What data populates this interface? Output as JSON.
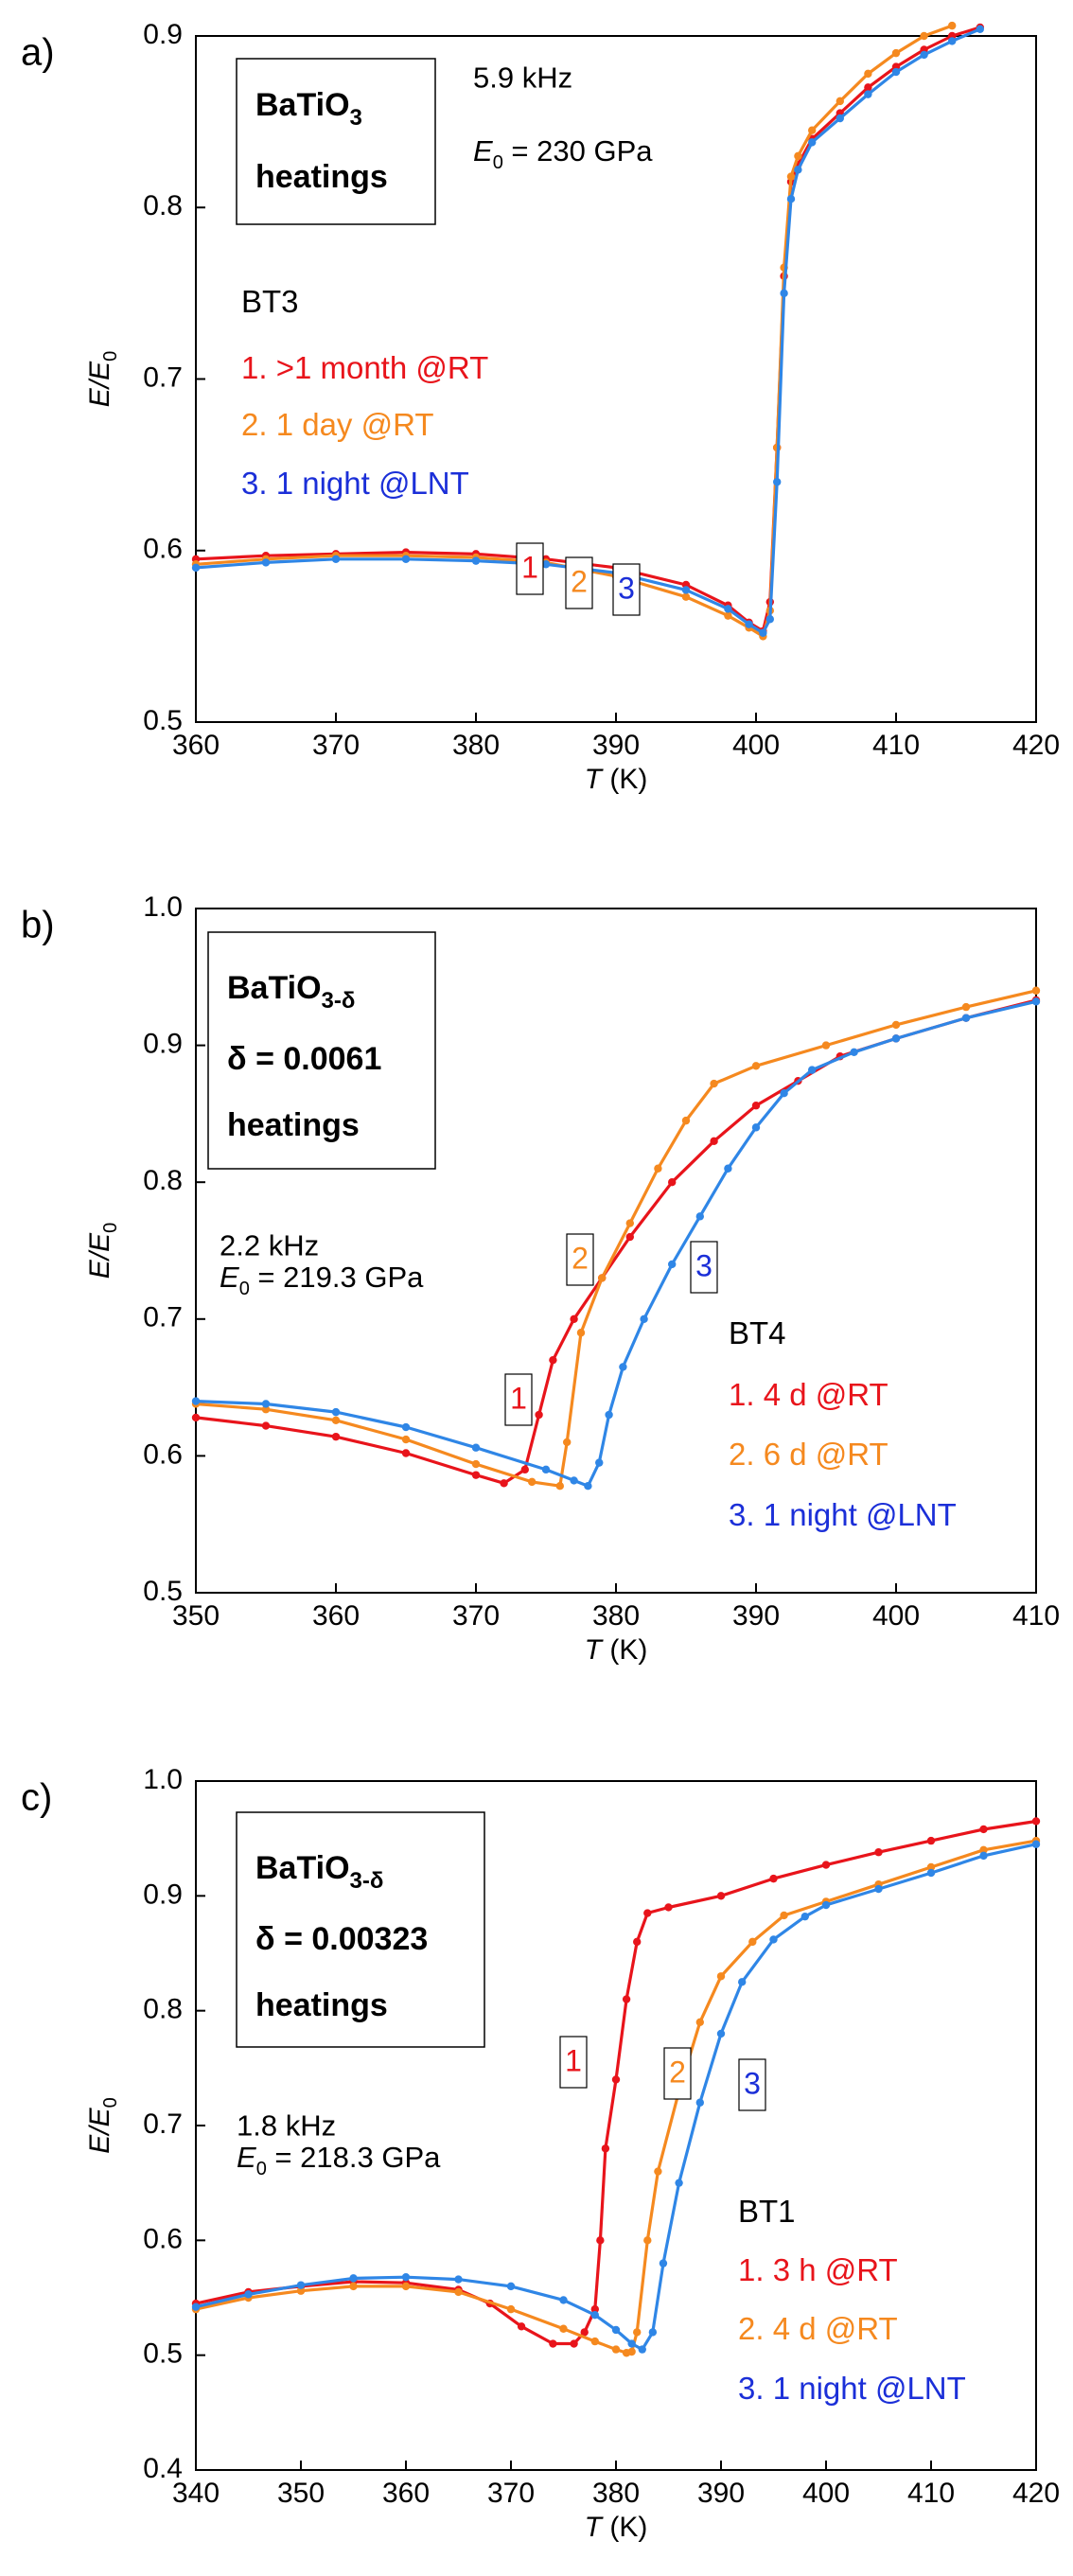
{
  "colors": {
    "series1": "#e8141b",
    "series2": "#f5891f",
    "series3": "#2f86e6",
    "label3": "#1b2fd8",
    "axis": "#000000"
  },
  "chart_data": [
    {
      "panel_label": "a)",
      "type": "line",
      "xlabel": "T (K)",
      "ylabel": "E/E0",
      "xlim": [
        360,
        420
      ],
      "ylim": [
        0.5,
        0.9
      ],
      "xticks": [
        "360",
        "370",
        "380",
        "390",
        "400",
        "410",
        "420"
      ],
      "yticks": [
        "0.5",
        "0.6",
        "0.7",
        "0.8",
        "0.9"
      ],
      "box": {
        "line1": "BaTiO",
        "sub": "3",
        "line2": "heatings"
      },
      "meta": [
        "5.9 kHz",
        "E0 = 230 GPa"
      ],
      "sample": "BT3",
      "legend": [
        "1. >1 month @RT",
        "2. 1 day @RT",
        "3. 1 night @LNT"
      ],
      "curve_labels": [
        "1",
        "2",
        "3"
      ],
      "series": [
        {
          "name": "1. >1 month @RT",
          "x": [
            360,
            365,
            370,
            375,
            380,
            385,
            390,
            395,
            398,
            399.5,
            400.5,
            401,
            401.5,
            402,
            402.5,
            403,
            404,
            406,
            408,
            410,
            412,
            414,
            416
          ],
          "y": [
            0.595,
            0.597,
            0.598,
            0.599,
            0.598,
            0.595,
            0.59,
            0.58,
            0.568,
            0.558,
            0.553,
            0.57,
            0.66,
            0.76,
            0.815,
            0.825,
            0.84,
            0.855,
            0.87,
            0.882,
            0.892,
            0.9,
            0.905
          ]
        },
        {
          "name": "2. 1 day @RT",
          "x": [
            360,
            365,
            370,
            375,
            380,
            385,
            390,
            395,
            398,
            399.5,
            400.5,
            401,
            401.5,
            402,
            402.5,
            403,
            404,
            406,
            408,
            410,
            412,
            414
          ],
          "y": [
            0.592,
            0.595,
            0.597,
            0.597,
            0.596,
            0.593,
            0.585,
            0.573,
            0.562,
            0.555,
            0.55,
            0.565,
            0.66,
            0.765,
            0.818,
            0.83,
            0.845,
            0.862,
            0.878,
            0.89,
            0.9,
            0.906
          ]
        },
        {
          "name": "3. 1 night @LNT",
          "x": [
            360,
            365,
            370,
            375,
            380,
            385,
            390,
            395,
            398,
            399.5,
            400.5,
            401,
            401.5,
            402,
            402.5,
            403,
            404,
            406,
            408,
            410,
            412,
            414,
            416
          ],
          "y": [
            0.59,
            0.593,
            0.595,
            0.595,
            0.594,
            0.592,
            0.587,
            0.577,
            0.566,
            0.557,
            0.552,
            0.56,
            0.64,
            0.75,
            0.805,
            0.822,
            0.838,
            0.852,
            0.866,
            0.879,
            0.889,
            0.897,
            0.904
          ]
        }
      ]
    },
    {
      "panel_label": "b)",
      "type": "line",
      "xlabel": "T (K)",
      "ylabel": "E/E0",
      "xlim": [
        350,
        410
      ],
      "ylim": [
        0.5,
        1.0
      ],
      "xticks": [
        "350",
        "360",
        "370",
        "380",
        "390",
        "400",
        "410"
      ],
      "yticks": [
        "0.5",
        "0.6",
        "0.7",
        "0.8",
        "0.9",
        "1.0"
      ],
      "box": {
        "line1": "BaTiO",
        "sub": "3-δ",
        "line2": "δ  = 0.0061",
        "line3": "heatings"
      },
      "meta": [
        "2.2 kHz",
        "E0 = 219.3 GPa"
      ],
      "sample": "BT4",
      "legend": [
        "1. 4 d @RT",
        "2. 6 d @RT",
        "3. 1 night @LNT"
      ],
      "curve_labels": [
        "1",
        "2",
        "3"
      ],
      "series": [
        {
          "name": "1. 4 d @RT",
          "x": [
            350,
            355,
            360,
            365,
            370,
            372,
            373.5,
            374.5,
            375.5,
            377,
            379,
            381,
            384,
            387,
            390,
            393,
            396,
            400,
            405,
            410
          ],
          "y": [
            0.628,
            0.622,
            0.614,
            0.602,
            0.586,
            0.58,
            0.59,
            0.63,
            0.67,
            0.7,
            0.73,
            0.76,
            0.8,
            0.83,
            0.856,
            0.874,
            0.892,
            0.905,
            0.92,
            0.933
          ]
        },
        {
          "name": "2. 6 d @RT",
          "x": [
            350,
            355,
            360,
            365,
            370,
            374,
            376,
            376.5,
            377.5,
            379,
            381,
            383,
            385,
            387,
            390,
            395,
            400,
            405,
            410
          ],
          "y": [
            0.638,
            0.634,
            0.626,
            0.612,
            0.594,
            0.581,
            0.578,
            0.61,
            0.69,
            0.73,
            0.77,
            0.81,
            0.845,
            0.872,
            0.885,
            0.9,
            0.915,
            0.928,
            0.94
          ]
        },
        {
          "name": "3. 1 night @LNT",
          "x": [
            350,
            355,
            360,
            365,
            370,
            375,
            377,
            378,
            378.8,
            379.5,
            380.5,
            382,
            384,
            386,
            388,
            390,
            392,
            394,
            397,
            400,
            405,
            410
          ],
          "y": [
            0.64,
            0.638,
            0.632,
            0.621,
            0.606,
            0.59,
            0.582,
            0.578,
            0.595,
            0.63,
            0.665,
            0.7,
            0.74,
            0.775,
            0.81,
            0.84,
            0.865,
            0.882,
            0.895,
            0.905,
            0.92,
            0.932
          ]
        }
      ]
    },
    {
      "panel_label": "c)",
      "type": "line",
      "xlabel": "T (K)",
      "ylabel": "E/E0",
      "xlim": [
        340,
        420
      ],
      "ylim": [
        0.4,
        1.0
      ],
      "xticks": [
        "340",
        "350",
        "360",
        "370",
        "380",
        "390",
        "400",
        "410",
        "420"
      ],
      "yticks": [
        "0.4",
        "0.5",
        "0.6",
        "0.7",
        "0.8",
        "0.9",
        "1.0"
      ],
      "box": {
        "line1": "BaTiO",
        "sub": "3-δ",
        "line2": "δ  = 0.00323",
        "line3": "heatings"
      },
      "meta": [
        "1.8 kHz",
        "E0 = 218.3 GPa"
      ],
      "sample": "BT1",
      "legend": [
        "1. 3 h @RT",
        "2. 4 d @RT",
        "3. 1 night @LNT"
      ],
      "curve_labels": [
        "1",
        "2",
        "3"
      ],
      "series": [
        {
          "name": "1. 3 h @RT",
          "x": [
            340,
            345,
            350,
            355,
            360,
            365,
            368,
            371,
            374,
            376,
            377,
            378,
            378.5,
            379,
            380,
            381,
            382,
            383,
            385,
            390,
            395,
            400,
            405,
            410,
            415,
            420
          ],
          "y": [
            0.545,
            0.555,
            0.56,
            0.564,
            0.563,
            0.557,
            0.545,
            0.525,
            0.51,
            0.51,
            0.52,
            0.54,
            0.6,
            0.68,
            0.74,
            0.81,
            0.86,
            0.885,
            0.89,
            0.9,
            0.915,
            0.927,
            0.938,
            0.948,
            0.958,
            0.965
          ]
        },
        {
          "name": "2. 4 d @RT",
          "x": [
            340,
            345,
            350,
            355,
            360,
            365,
            370,
            375,
            378,
            380,
            381,
            381.5,
            382,
            383,
            384,
            386,
            388,
            390,
            393,
            396,
            400,
            405,
            410,
            415,
            420
          ],
          "y": [
            0.54,
            0.55,
            0.556,
            0.56,
            0.56,
            0.555,
            0.54,
            0.523,
            0.512,
            0.505,
            0.502,
            0.503,
            0.52,
            0.6,
            0.66,
            0.73,
            0.79,
            0.83,
            0.86,
            0.883,
            0.895,
            0.91,
            0.925,
            0.94,
            0.948
          ]
        },
        {
          "name": "3. 1 night @LNT",
          "x": [
            340,
            345,
            350,
            355,
            360,
            365,
            370,
            375,
            378,
            380,
            381.5,
            382.5,
            383.5,
            384.5,
            386,
            388,
            390,
            392,
            395,
            398,
            400,
            405,
            410,
            415,
            420
          ],
          "y": [
            0.542,
            0.553,
            0.561,
            0.567,
            0.568,
            0.566,
            0.56,
            0.548,
            0.535,
            0.522,
            0.51,
            0.505,
            0.52,
            0.58,
            0.65,
            0.72,
            0.78,
            0.825,
            0.862,
            0.882,
            0.892,
            0.906,
            0.92,
            0.935,
            0.945
          ]
        }
      ]
    }
  ]
}
